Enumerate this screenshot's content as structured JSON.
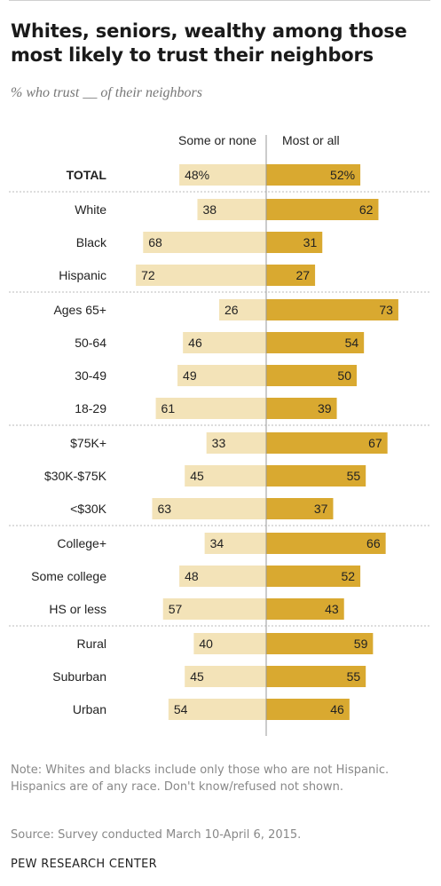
{
  "title": "Whites, seniors, wealthy among those most likely to trust their neighbors",
  "subtitle": "% who trust __ of their neighbors",
  "note": "Note: Whites and blacks include only those who are not Hispanic. Hispanics are of any race. Don't know/refused not shown.",
  "source": "Source: Survey conducted March 10-April 6, 2015.",
  "logo": "PEW RESEARCH CENTER",
  "colors": {
    "some_or_none": "#f3e3b8",
    "most_or_all": "#d9a930",
    "divider": "#bbbbbb",
    "axis": "#999999"
  },
  "chart_data": {
    "type": "bar",
    "orientation": "diverging-horizontal",
    "series_headers": [
      "Some or none",
      "Most or all"
    ],
    "categories": [
      "TOTAL",
      "White",
      "Black",
      "Hispanic",
      "Ages 65+",
      "50-64",
      "30-49",
      "18-29",
      "$75K+",
      "$30K-$75K",
      "<$30K",
      "College+",
      "Some college",
      "HS or less",
      "Rural",
      "Suburban",
      "Urban"
    ],
    "groups": [
      [
        "TOTAL"
      ],
      [
        "White",
        "Black",
        "Hispanic"
      ],
      [
        "Ages 65+",
        "50-64",
        "30-49",
        "18-29"
      ],
      [
        "$75K+",
        "$30K-$75K",
        "<$30K"
      ],
      [
        "College+",
        "Some college",
        "HS or less"
      ],
      [
        "Rural",
        "Suburban",
        "Urban"
      ]
    ],
    "series": [
      {
        "name": "Some or none",
        "values": [
          48,
          38,
          68,
          72,
          26,
          46,
          49,
          61,
          33,
          45,
          63,
          34,
          48,
          57,
          40,
          45,
          54
        ]
      },
      {
        "name": "Most or all",
        "values": [
          52,
          62,
          31,
          27,
          73,
          54,
          50,
          39,
          67,
          55,
          37,
          66,
          52,
          43,
          59,
          55,
          46
        ]
      }
    ],
    "value_labels": {
      "Some or none": [
        "48%",
        "38",
        "68",
        "72",
        "26",
        "46",
        "49",
        "61",
        "33",
        "45",
        "63",
        "34",
        "48",
        "57",
        "40",
        "45",
        "54"
      ],
      "Most or all": [
        "52%",
        "62",
        "31",
        "27",
        "73",
        "54",
        "50",
        "39",
        "67",
        "55",
        "37",
        "66",
        "52",
        "43",
        "59",
        "55",
        "46"
      ]
    },
    "bold_categories": [
      "TOTAL"
    ]
  }
}
